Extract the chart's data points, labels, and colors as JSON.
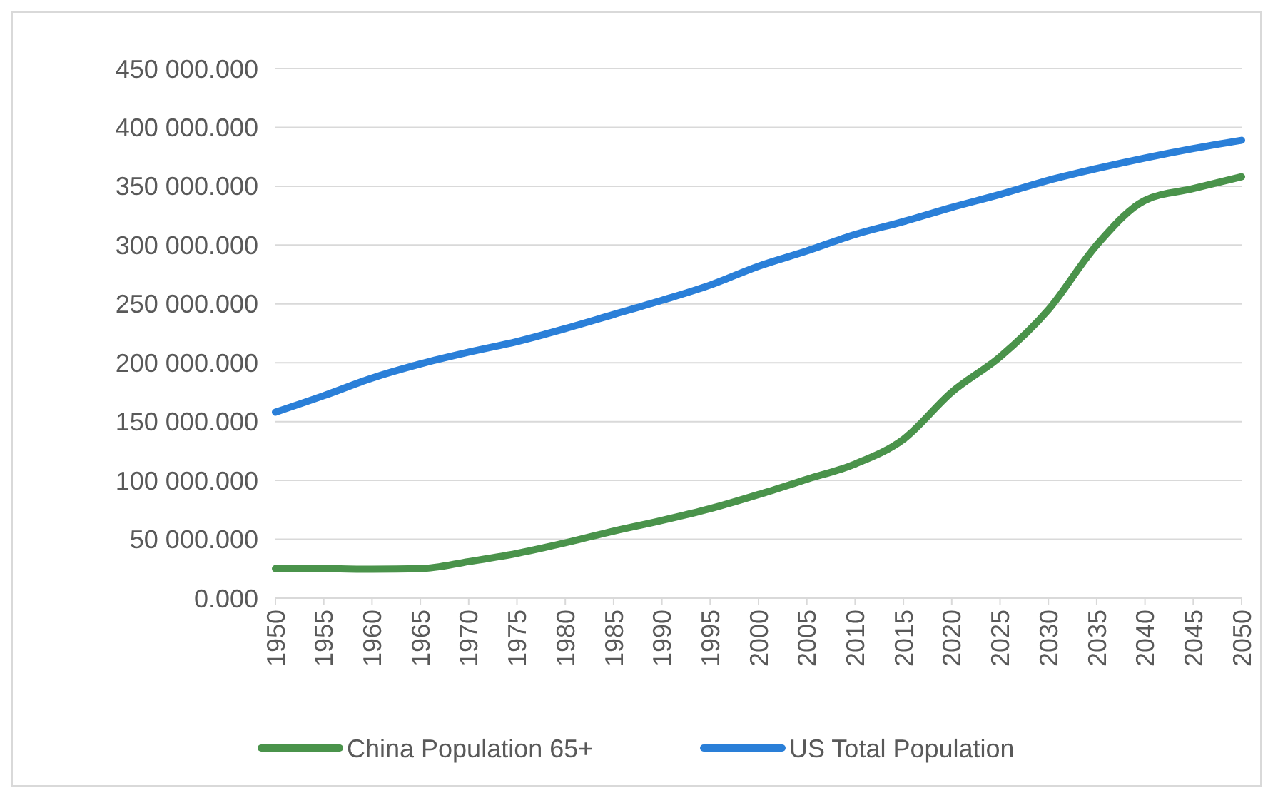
{
  "chart_data": {
    "type": "line",
    "x": [
      1950,
      1955,
      1960,
      1965,
      1970,
      1975,
      1980,
      1985,
      1990,
      1995,
      2000,
      2005,
      2010,
      2015,
      2020,
      2025,
      2030,
      2035,
      2040,
      2045,
      2050
    ],
    "series": [
      {
        "name": "China Population 65+",
        "color": "#4a934b",
        "values": [
          25000,
          25000,
          24500,
          25000,
          31000,
          38000,
          47000,
          57000,
          66000,
          76000,
          88000,
          101000,
          114000,
          135000,
          175000,
          205000,
          245000,
          300000,
          338000,
          348000,
          358000
        ]
      },
      {
        "name": "US Total Population",
        "color": "#2a7fd8",
        "values": [
          158000,
          172000,
          187000,
          199000,
          209000,
          218000,
          229000,
          241000,
          253000,
          266000,
          282000,
          295000,
          309000,
          320000,
          332000,
          343000,
          355000,
          365000,
          374000,
          382000,
          389000
        ]
      }
    ],
    "xlim": [
      1950,
      2050
    ],
    "xticks": [
      1950,
      1955,
      1960,
      1965,
      1970,
      1975,
      1980,
      1985,
      1990,
      1995,
      2000,
      2005,
      2010,
      2015,
      2020,
      2025,
      2030,
      2035,
      2040,
      2045,
      2050
    ],
    "ylim": [
      0,
      450000
    ],
    "yticks": [
      {
        "value": 0,
        "label": "0.000"
      },
      {
        "value": 50000,
        "label": "50 000.000"
      },
      {
        "value": 100000,
        "label": "100 000.000"
      },
      {
        "value": 150000,
        "label": "150 000.000"
      },
      {
        "value": 200000,
        "label": "200 000.000"
      },
      {
        "value": 250000,
        "label": "250 000.000"
      },
      {
        "value": 300000,
        "label": "300 000.000"
      },
      {
        "value": 350000,
        "label": "350 000.000"
      },
      {
        "value": 400000,
        "label": "400 000.000"
      },
      {
        "value": 450000,
        "label": "450 000.000"
      }
    ],
    "grid": "y",
    "legend": "bottom",
    "line_style": "solid",
    "marker": "none"
  }
}
